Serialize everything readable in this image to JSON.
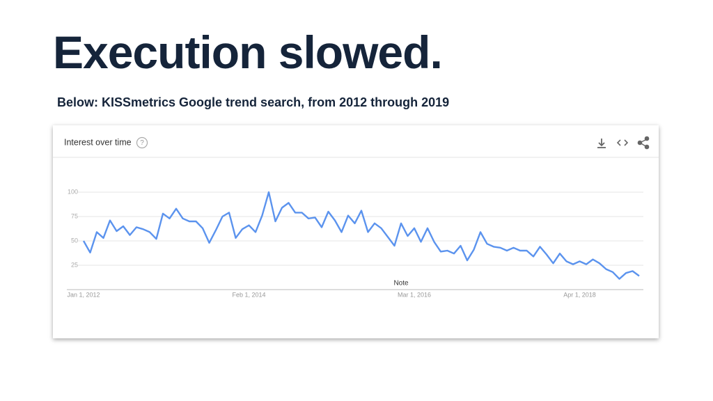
{
  "slide_title": "Execution slowed.",
  "slide_subtitle": "Below: KISSmetrics Google trend search, from 2012 through 2019",
  "chart_data": {
    "type": "line",
    "title": "Interest over time",
    "help_icon": "?",
    "annotation": "Note",
    "categories": [
      "Jan 1, 2012",
      null,
      null,
      null,
      null,
      null,
      null,
      null,
      null,
      null,
      null,
      null,
      null,
      null,
      null,
      null,
      null,
      null,
      null,
      null,
      null,
      null,
      null,
      null,
      null,
      "Feb 1, 2014",
      null,
      null,
      null,
      null,
      null,
      null,
      null,
      null,
      null,
      null,
      null,
      null,
      null,
      null,
      null,
      null,
      null,
      null,
      null,
      null,
      null,
      null,
      null,
      null,
      "Mar 1, 2016",
      null,
      null,
      null,
      null,
      null,
      null,
      null,
      null,
      null,
      null,
      null,
      null,
      null,
      null,
      null,
      null,
      null,
      null,
      null,
      null,
      null,
      null,
      null,
      null,
      "Apr 1, 2018",
      null,
      null,
      null,
      null,
      null,
      null,
      null,
      null,
      null
    ],
    "series": [
      {
        "color": "#5b93ee",
        "values": [
          50,
          38,
          59,
          53,
          71,
          60,
          65,
          56,
          64,
          62,
          59,
          52,
          78,
          73,
          83,
          73,
          70,
          70,
          63,
          48,
          61,
          75,
          79,
          53,
          62,
          66,
          59,
          76,
          100,
          70,
          84,
          89,
          79,
          79,
          73,
          74,
          64,
          80,
          71,
          59,
          76,
          68,
          81,
          59,
          68,
          63,
          54,
          45,
          68,
          55,
          63,
          49,
          63,
          49,
          39,
          40,
          37,
          45,
          30,
          41,
          59,
          47,
          44,
          43,
          40,
          43,
          40,
          40,
          34,
          44,
          36,
          27,
          37,
          29,
          26,
          29,
          26,
          31,
          27,
          21,
          18,
          11,
          17,
          19,
          14
        ]
      }
    ],
    "ylim": [
      0,
      100
    ],
    "yticks": [
      25,
      50,
      75,
      100
    ],
    "grid": true
  }
}
